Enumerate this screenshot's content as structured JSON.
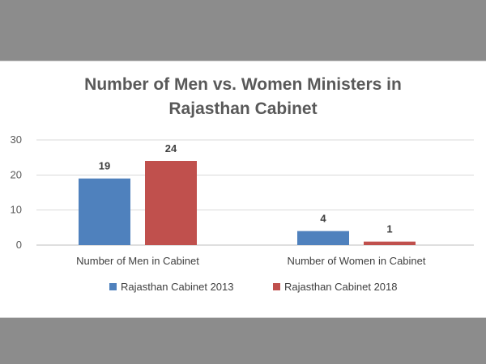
{
  "chart_data": {
    "type": "bar",
    "title_lines": [
      "Number of Men vs. Women Ministers in",
      "Rajasthan Cabinet"
    ],
    "categories": [
      "Number of Men in Cabinet",
      "Number of Women in Cabinet"
    ],
    "series": [
      {
        "name": "Rajasthan Cabinet 2013",
        "values": [
          19,
          4
        ],
        "color": "#4f81bd"
      },
      {
        "name": "Rajasthan Cabinet 2018",
        "values": [
          24,
          1
        ],
        "color": "#c0504d"
      }
    ],
    "ylim": [
      0,
      30
    ],
    "yticks": [
      "0",
      "10",
      "20",
      "30"
    ],
    "grid": true,
    "legend_position": "bottom",
    "data_labels": true
  }
}
